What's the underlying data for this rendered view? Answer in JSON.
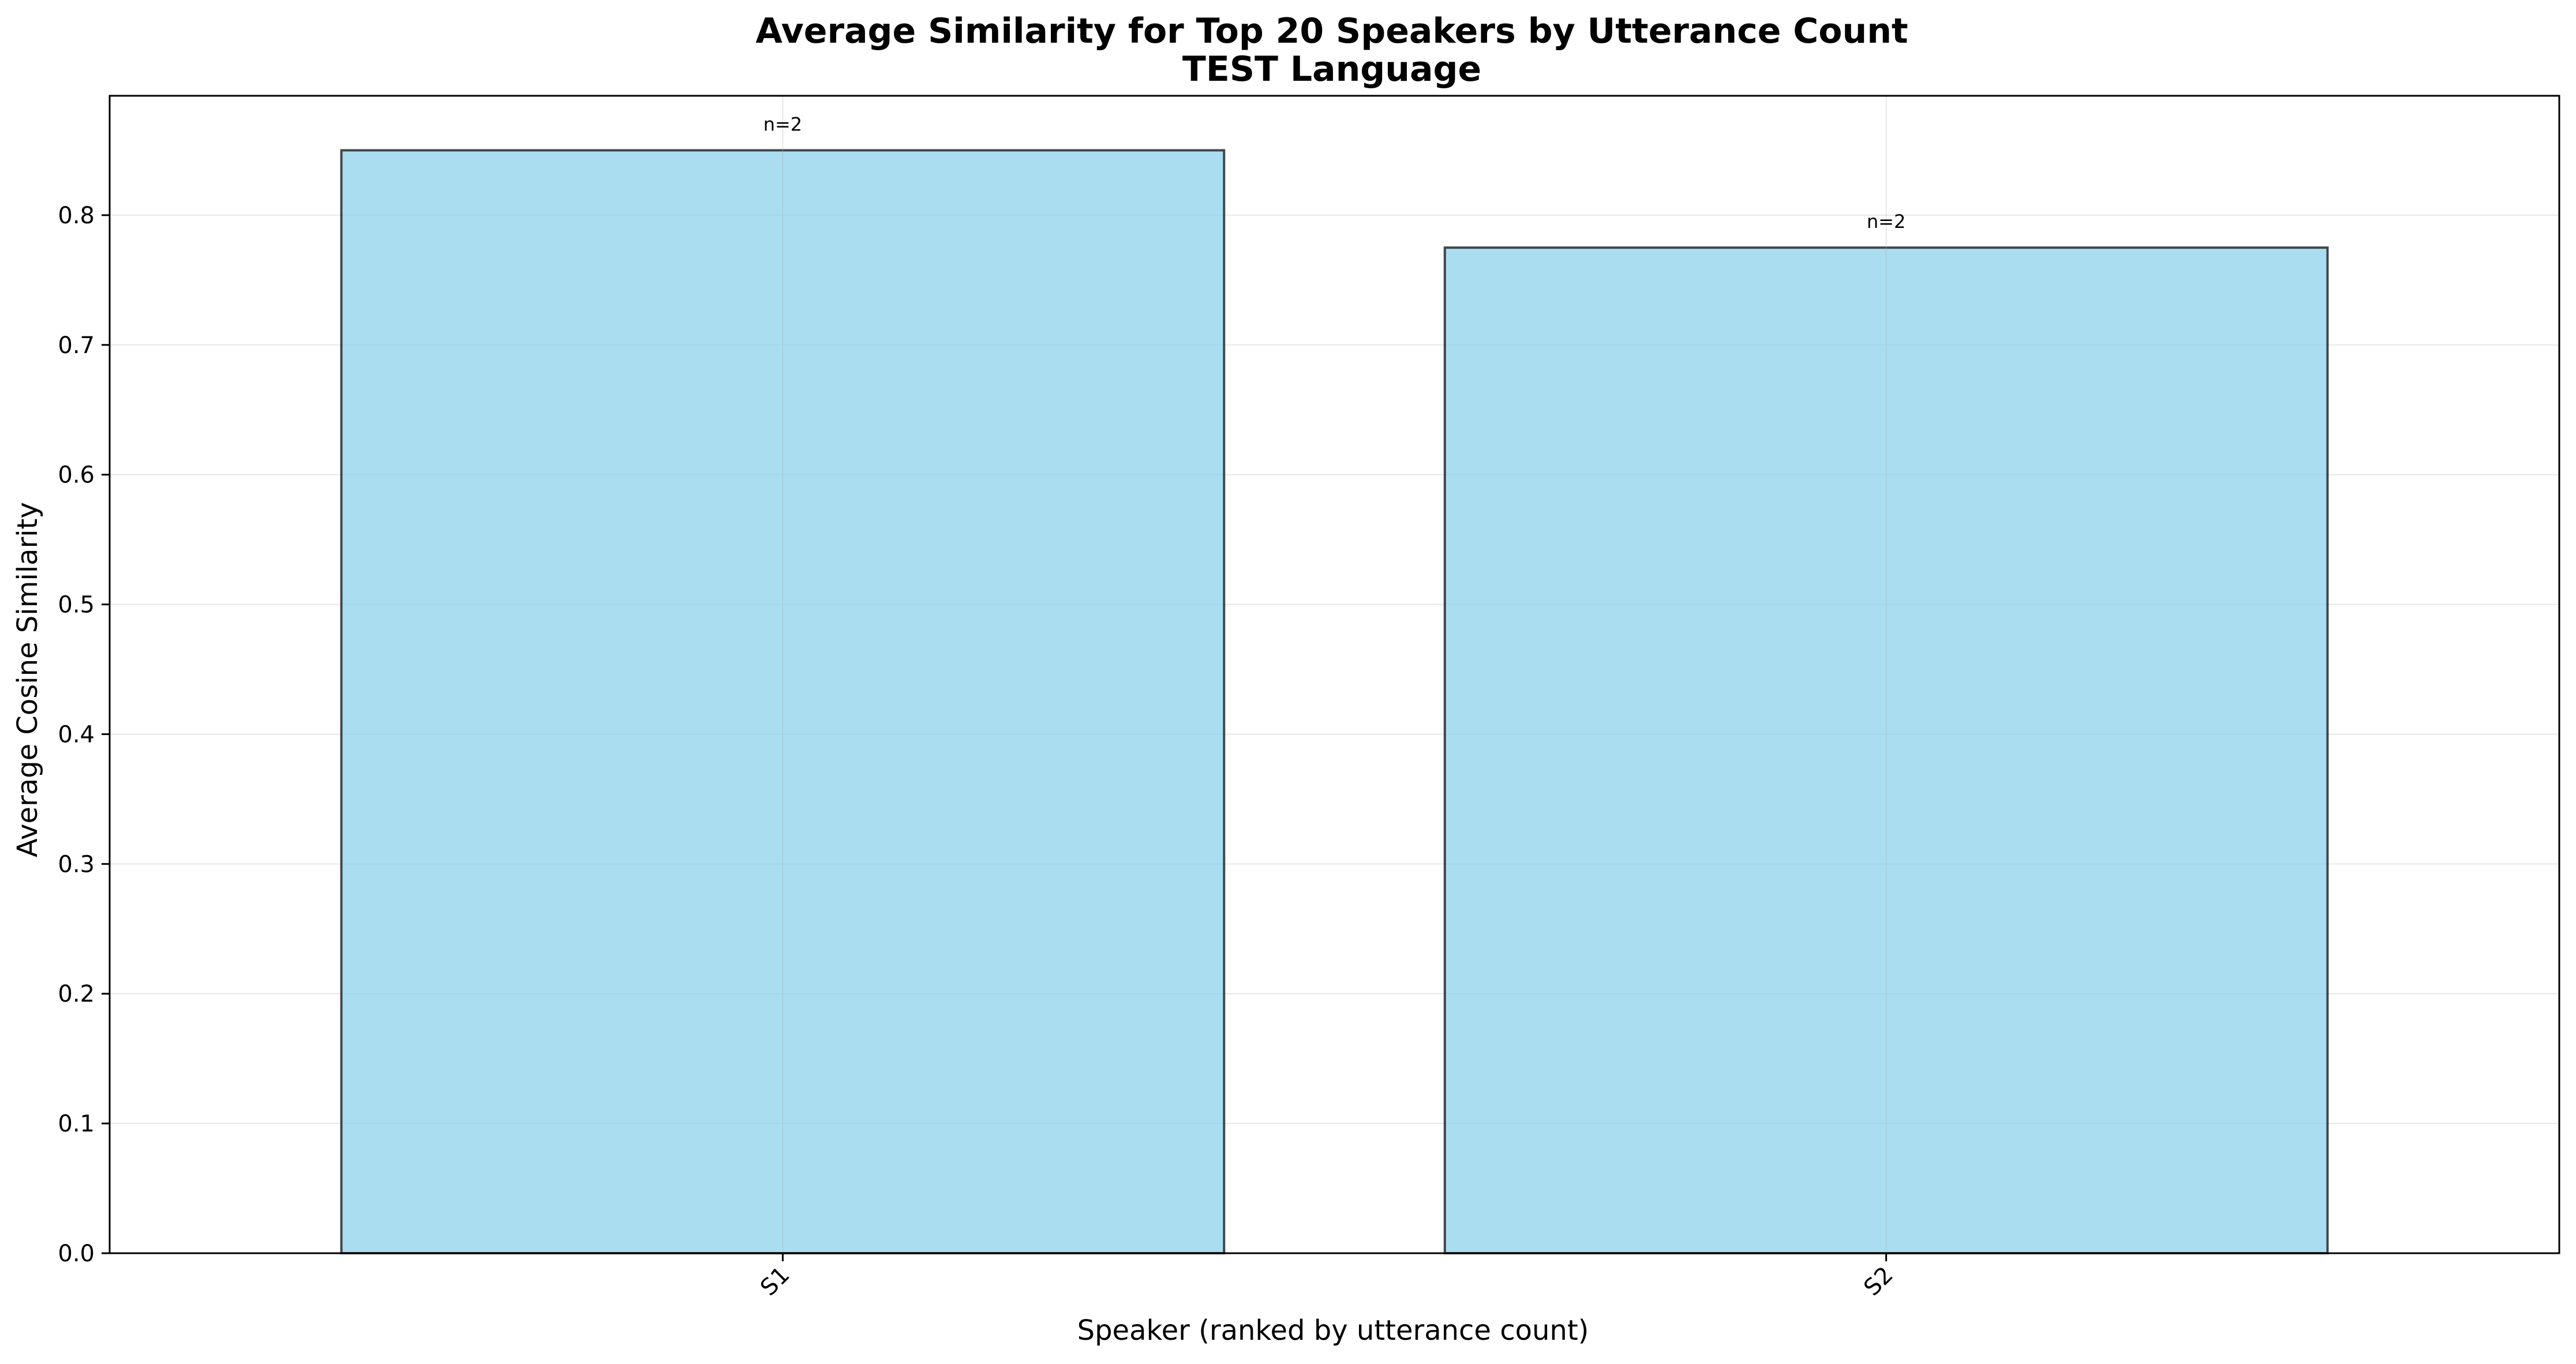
{
  "chart_data": {
    "type": "bar",
    "title": "Average Similarity for Top 20 Speakers by Utterance Count",
    "subtitle": "TEST Language",
    "xlabel": "Speaker (ranked by utterance count)",
    "ylabel": "Average Cosine Similarity",
    "categories": [
      "S1",
      "S2"
    ],
    "values": [
      0.85,
      0.775
    ],
    "data_labels": [
      "n=2",
      "n=2"
    ],
    "ylim": [
      0,
      0.892
    ],
    "yticks": [
      0.0,
      0.1,
      0.2,
      0.3,
      0.4,
      0.5,
      0.6,
      0.7,
      0.8
    ],
    "ytick_labels": [
      "0.0",
      "0.1",
      "0.2",
      "0.3",
      "0.4",
      "0.5",
      "0.6",
      "0.7",
      "0.8"
    ],
    "grid": true,
    "bar_color": "#87CEEB",
    "edge_color": "#000000"
  }
}
